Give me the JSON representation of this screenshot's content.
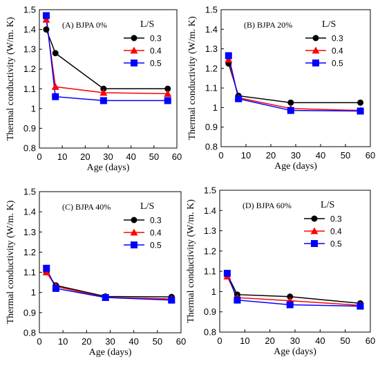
{
  "chart_data": [
    {
      "type": "line",
      "title": "(A)  BJPA 0%",
      "xlabel": "Age (days)",
      "ylabel": "Thermal conductivity (W/m.  K)",
      "xlim": [
        0,
        60
      ],
      "ylim": [
        0.8,
        1.5
      ],
      "xticks": [
        "0",
        "10",
        "20",
        "30",
        "40",
        "50",
        "60"
      ],
      "yticks": [
        "0.8",
        "0.9",
        "1",
        "1.1",
        "1.2",
        "1.3",
        "1.4",
        "1.5"
      ],
      "legend_title": "L/S",
      "legend_position": "top-right",
      "x": [
        3,
        7,
        28,
        56
      ],
      "series": [
        {
          "name": "0.3",
          "color": "#000000",
          "marker": "circle",
          "values": [
            1.4,
            1.28,
            1.1,
            1.1
          ]
        },
        {
          "name": "0.4",
          "color": "#ff0000",
          "marker": "triangle",
          "values": [
            1.45,
            1.11,
            1.08,
            1.075
          ]
        },
        {
          "name": "0.5",
          "color": "#0000ff",
          "marker": "square",
          "values": [
            1.47,
            1.06,
            1.04,
            1.04
          ]
        }
      ]
    },
    {
      "type": "line",
      "title": "(B)  BJPA 20%",
      "xlabel": "Age (days)",
      "ylabel": "Thermal conductivity (W/m.  K)",
      "xlim": [
        0,
        60
      ],
      "ylim": [
        0.8,
        1.5
      ],
      "xticks": [
        "0",
        "10",
        "20",
        "30",
        "40",
        "50",
        "60"
      ],
      "yticks": [
        "0.8",
        "0.9",
        "1",
        "1.1",
        "1.2",
        "1.3",
        "1.4",
        "1.5"
      ],
      "legend_title": "L/S",
      "legend_position": "top-right",
      "x": [
        3,
        7,
        28,
        56
      ],
      "series": [
        {
          "name": "0.3",
          "color": "#000000",
          "marker": "circle",
          "values": [
            1.225,
            1.06,
            1.025,
            1.025
          ]
        },
        {
          "name": "0.4",
          "color": "#ff0000",
          "marker": "triangle",
          "values": [
            1.245,
            1.05,
            0.995,
            0.985
          ]
        },
        {
          "name": "0.5",
          "color": "#0000ff",
          "marker": "square",
          "values": [
            1.265,
            1.045,
            0.985,
            0.982
          ]
        }
      ]
    },
    {
      "type": "line",
      "title": "(C)  BJPA 40%",
      "xlabel": "Age (days)",
      "ylabel": "Thermal conductivity (W/m.  K)",
      "xlim": [
        0,
        60
      ],
      "ylim": [
        0.8,
        1.5
      ],
      "xticks": [
        "0",
        "10",
        "20",
        "30",
        "40",
        "50",
        "60"
      ],
      "yticks": [
        "0.8",
        "0.9",
        "1",
        "1.1",
        "1.2",
        "1.3",
        "1.4",
        "1.5"
      ],
      "legend_title": "L/S",
      "legend_position": "top-right",
      "x": [
        3,
        7,
        28,
        56
      ],
      "series": [
        {
          "name": "0.3",
          "color": "#000000",
          "marker": "circle",
          "values": [
            1.1,
            1.035,
            0.98,
            0.978
          ]
        },
        {
          "name": "0.4",
          "color": "#ff0000",
          "marker": "triangle",
          "values": [
            1.1,
            1.03,
            0.975,
            0.968
          ]
        },
        {
          "name": "0.5",
          "color": "#0000ff",
          "marker": "square",
          "values": [
            1.12,
            1.02,
            0.975,
            0.962
          ]
        }
      ]
    },
    {
      "type": "line",
      "title": "(D)  BJPA 60%",
      "xlabel": "Age (days)",
      "ylabel": "Thermal conductivity (W/m.  K)",
      "xlim": [
        0,
        60
      ],
      "ylim": [
        0.8,
        1.5
      ],
      "xticks": [
        "0",
        "10",
        "20",
        "30",
        "40",
        "50",
        "60"
      ],
      "yticks": [
        "0.8",
        "0.9",
        "1",
        "1.1",
        "1.2",
        "1.3",
        "1.4",
        "1.5"
      ],
      "legend_title": "L/S",
      "legend_position": "top-right",
      "x": [
        3,
        7,
        28,
        56
      ],
      "series": [
        {
          "name": "0.3",
          "color": "#000000",
          "marker": "circle",
          "values": [
            1.085,
            0.985,
            0.975,
            0.942
          ]
        },
        {
          "name": "0.4",
          "color": "#ff0000",
          "marker": "triangle",
          "values": [
            1.075,
            0.97,
            0.955,
            0.932
          ]
        },
        {
          "name": "0.5",
          "color": "#0000ff",
          "marker": "square",
          "values": [
            1.09,
            0.958,
            0.935,
            0.928
          ]
        }
      ]
    }
  ]
}
